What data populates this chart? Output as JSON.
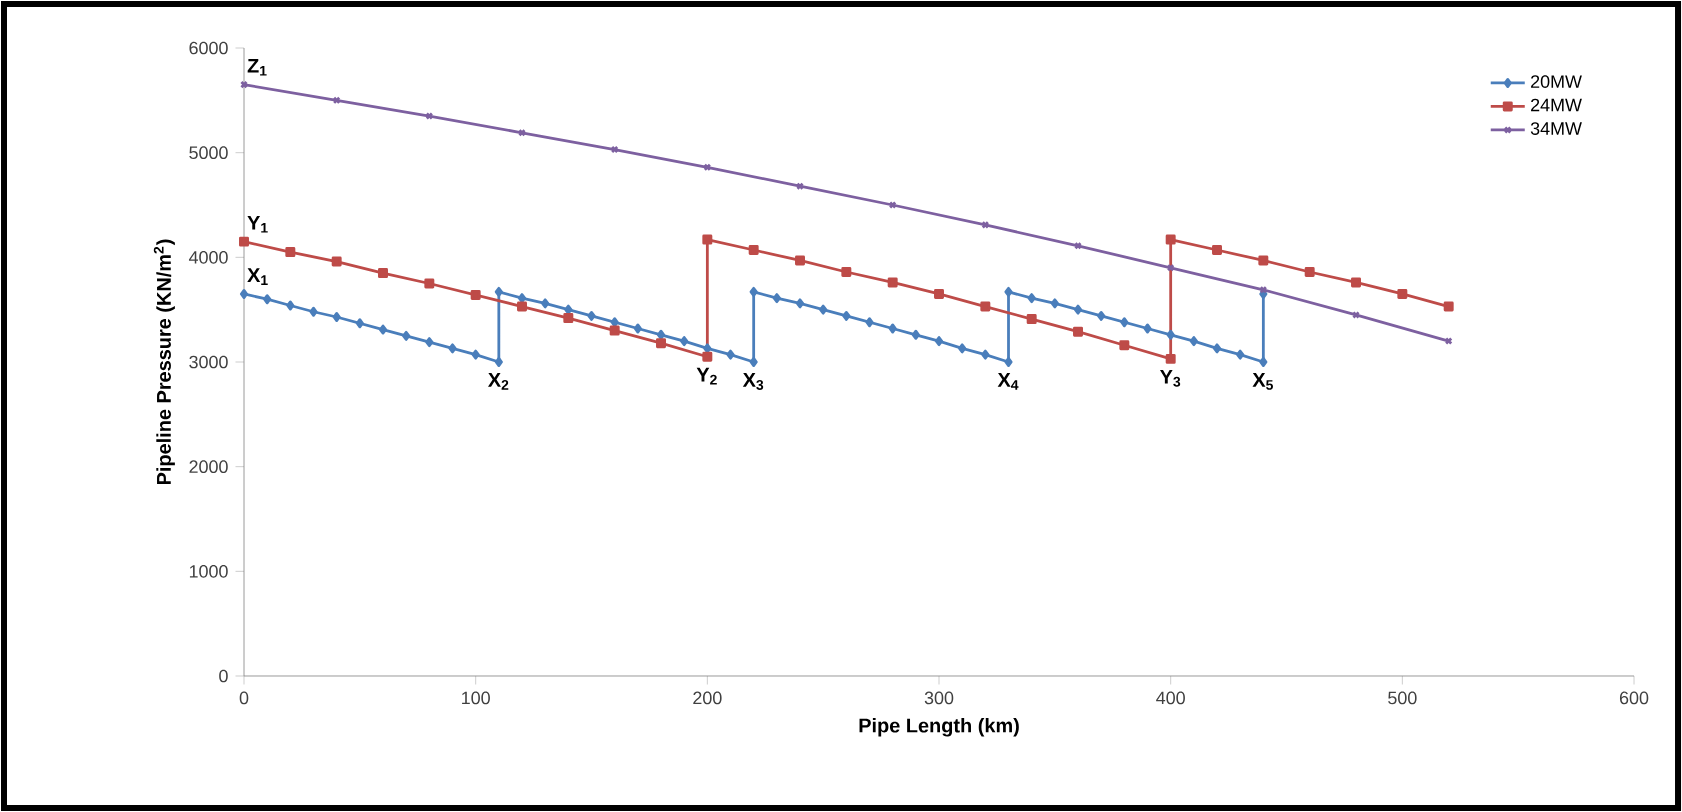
{
  "chart_data": {
    "type": "line",
    "xlabel": "Pipe Length (km)",
    "ylabel": "Pipeline Pressure (KN/m$^{2}$)",
    "xlim": [
      0,
      600
    ],
    "xticks": [
      0,
      100,
      200,
      300,
      400,
      500,
      600
    ],
    "ylim": [
      0,
      6000
    ],
    "yticks": [
      0,
      1000,
      2000,
      3000,
      4000,
      5000,
      6000
    ],
    "legend": "top right",
    "grid": false,
    "line_style": "solid",
    "series": [
      {
        "name": "20MW",
        "color": "#4a7ebb",
        "marker": "diamond",
        "x": [
          0,
          10,
          20,
          30,
          40,
          50,
          60,
          70,
          80,
          90,
          100,
          110,
          110,
          120,
          130,
          140,
          150,
          160,
          170,
          180,
          190,
          200,
          210,
          220,
          220,
          230,
          240,
          250,
          260,
          270,
          280,
          290,
          300,
          310,
          320,
          330,
          330,
          340,
          350,
          360,
          370,
          380,
          390,
          400,
          410,
          420,
          430,
          440,
          440
        ],
        "values": [
          3650,
          3600,
          3540,
          3480,
          3430,
          3370,
          3310,
          3250,
          3190,
          3130,
          3070,
          3000,
          3670,
          3610,
          3560,
          3500,
          3440,
          3380,
          3320,
          3260,
          3200,
          3130,
          3070,
          3000,
          3670,
          3610,
          3560,
          3500,
          3440,
          3380,
          3320,
          3260,
          3200,
          3130,
          3070,
          3000,
          3670,
          3610,
          3560,
          3500,
          3440,
          3380,
          3320,
          3260,
          3200,
          3130,
          3070,
          3000,
          3650
        ]
      },
      {
        "name": "24MW",
        "color": "#be4b48",
        "marker": "square",
        "x": [
          0,
          20,
          40,
          60,
          80,
          100,
          120,
          140,
          160,
          180,
          200,
          200,
          220,
          240,
          260,
          280,
          300,
          320,
          340,
          360,
          380,
          400,
          400,
          420,
          440,
          460,
          480,
          500,
          520
        ],
        "values": [
          4150,
          4050,
          3960,
          3850,
          3750,
          3640,
          3530,
          3420,
          3300,
          3180,
          3050,
          4170,
          4070,
          3970,
          3860,
          3760,
          3650,
          3530,
          3410,
          3290,
          3160,
          3030,
          4170,
          4070,
          3970,
          3860,
          3760,
          3650,
          3530
        ]
      },
      {
        "name": "34MW",
        "color": "#7d60a0",
        "marker": "cross",
        "x": [
          0,
          40,
          80,
          120,
          160,
          200,
          240,
          280,
          320,
          360,
          400,
          440,
          480,
          520
        ],
        "values": [
          5650,
          5500,
          5350,
          5190,
          5030,
          4860,
          4680,
          4500,
          4310,
          4110,
          3900,
          3690,
          3450,
          3200
        ]
      }
    ],
    "annotations": [
      {
        "text": "Z$_{1}$",
        "x": 0,
        "y": 5650
      },
      {
        "text": "Y$_{1}$",
        "x": 0,
        "y": 4150
      },
      {
        "text": "X$_{1}$",
        "x": 0,
        "y": 3650
      },
      {
        "text": "X$_{2}$",
        "x": 110,
        "y": 3000
      },
      {
        "text": "Y$_{2}$",
        "x": 200,
        "y": 3050
      },
      {
        "text": "X$_{3}$",
        "x": 220,
        "y": 3000
      },
      {
        "text": "X$_{4}$",
        "x": 330,
        "y": 3000
      },
      {
        "text": "Y$_{3}$",
        "x": 400,
        "y": 3030
      },
      {
        "text": "X$_{5}$",
        "x": 440,
        "y": 3000
      }
    ]
  }
}
